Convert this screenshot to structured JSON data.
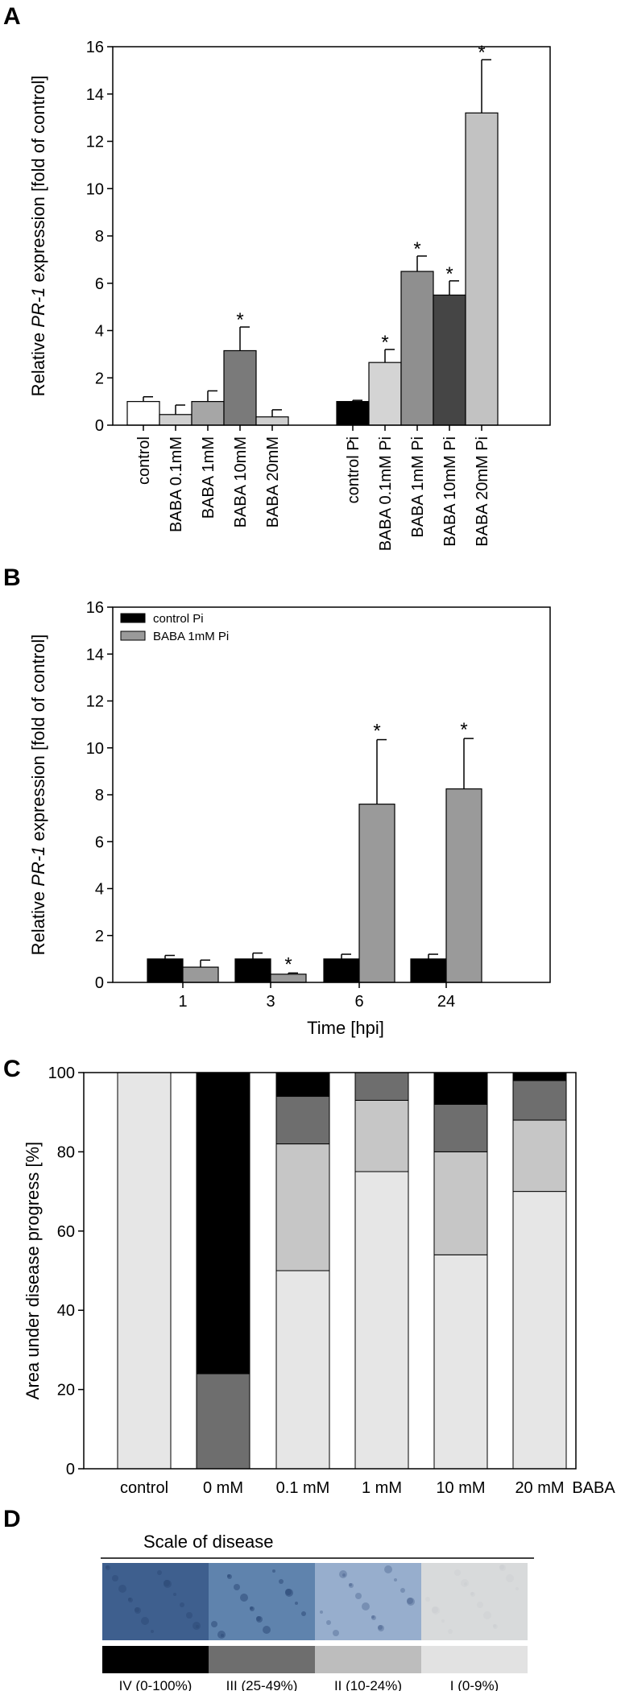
{
  "chart_data": [
    {
      "panel": "A",
      "type": "bar",
      "ylabel_prefix": "Relative ",
      "ylabel_italic": "PR-1",
      "ylabel_suffix": " expression [fold of control]",
      "ylim": [
        0,
        16
      ],
      "yticks": [
        "0",
        "2",
        "4",
        "6",
        "8",
        "10",
        "12",
        "14",
        "16"
      ],
      "separator_mark": ".",
      "categories": [
        "control",
        "BABA 0.1mM",
        "BABA 1mM",
        "BABA 10mM",
        "BABA 20mM",
        "control Pi",
        "BABA 0.1mM Pi",
        "BABA 1mM Pi",
        "BABA 10mM Pi",
        "BABA 20mM Pi"
      ],
      "values": [
        1.0,
        0.45,
        1.0,
        3.15,
        0.35,
        1.0,
        2.65,
        6.5,
        5.5,
        13.2
      ],
      "errors": [
        0.2,
        0.4,
        0.45,
        1.0,
        0.3,
        0.05,
        0.55,
        0.65,
        0.6,
        2.25
      ],
      "significant": [
        false,
        false,
        false,
        true,
        false,
        false,
        true,
        true,
        true,
        true
      ],
      "colors": [
        "#ffffff",
        "#d0d0d0",
        "#a6a6a6",
        "#7a7a7a",
        "#cfcfcf",
        "#000000",
        "#d4d4d4",
        "#8f8f8f",
        "#454545",
        "#c2c2c2"
      ],
      "star": "*"
    },
    {
      "panel": "B",
      "type": "bar",
      "ylabel_prefix": "Relative ",
      "ylabel_italic": "PR-1",
      "ylabel_suffix": " expression [fold of control]",
      "xlabel": "Time [hpi]",
      "ylim": [
        0,
        16
      ],
      "yticks": [
        "0",
        "2",
        "4",
        "6",
        "8",
        "10",
        "12",
        "14",
        "16"
      ],
      "categories": [
        "1",
        "3",
        "6",
        "24"
      ],
      "series": [
        {
          "name": "control Pi",
          "color": "#000000",
          "values": [
            1.0,
            1.0,
            1.0,
            1.0
          ],
          "errors": [
            0.15,
            0.25,
            0.2,
            0.2
          ],
          "significant": [
            false,
            false,
            false,
            false
          ]
        },
        {
          "name": "BABA 1mM Pi",
          "color": "#9a9a9a",
          "values": [
            0.65,
            0.35,
            7.6,
            8.25
          ],
          "errors": [
            0.3,
            0.05,
            2.75,
            2.15
          ],
          "significant": [
            false,
            true,
            true,
            true
          ]
        }
      ],
      "legend_position": "top-left",
      "star": "*"
    },
    {
      "panel": "C",
      "type": "stacked-bar",
      "ylabel": "Area under disease progress [%]",
      "ylim": [
        0,
        100
      ],
      "yticks": [
        "0",
        "20",
        "40",
        "60",
        "80",
        "100"
      ],
      "categories": [
        "control",
        "0 mM",
        "0.1 mM",
        "1 mM",
        "10 mM",
        "20 mM"
      ],
      "trailing_label": "BABA",
      "series": [
        {
          "name": "I (0-9%)",
          "color": "#e6e6e6",
          "values": [
            100,
            0,
            50,
            75,
            54,
            70
          ]
        },
        {
          "name": "II (10-24%)",
          "color": "#c6c6c6",
          "values": [
            0,
            0,
            32,
            18,
            26,
            18
          ]
        },
        {
          "name": "III (25-49%)",
          "color": "#6e6e6e",
          "values": [
            0,
            24,
            12,
            7,
            12,
            10
          ]
        },
        {
          "name": "IV (0-100%)",
          "color": "#000000",
          "values": [
            0,
            76,
            6,
            0,
            8,
            2
          ]
        }
      ]
    }
  ],
  "panel_d": {
    "letter": "D",
    "title": "Scale of disease",
    "levels": [
      {
        "label": "IV (0-100%)",
        "color": "#000000",
        "photo": "#3e5f8e"
      },
      {
        "label": "III (25-49%)",
        "color": "#6e6e6e",
        "photo": "#5f83ad"
      },
      {
        "label": "II (10-24%)",
        "color": "#bdbdbd",
        "photo": "#97aecd"
      },
      {
        "label": "I (0-9%)",
        "color": "#e2e2e2",
        "photo": "#d8dadb"
      }
    ]
  }
}
